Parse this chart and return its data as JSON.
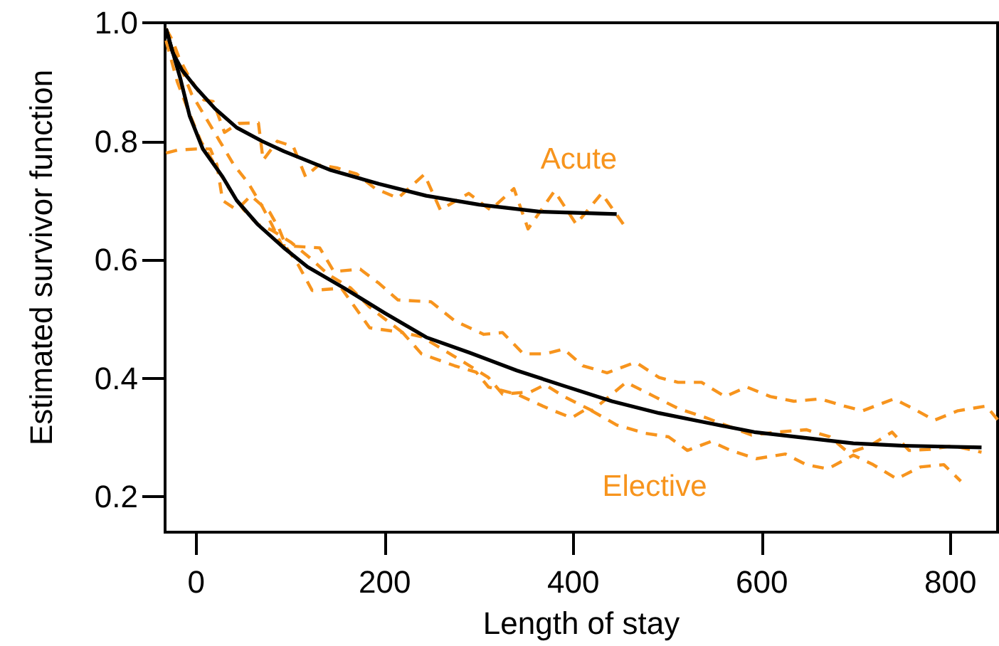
{
  "chart_data": {
    "type": "line",
    "xlabel": "Length of stay",
    "ylabel": "Estimated survivor function",
    "xlim": [
      -33,
      850
    ],
    "ylim": [
      0.14,
      1.0
    ],
    "xticks": [
      0,
      200,
      400,
      600,
      800
    ],
    "yticks": [
      0.2,
      0.4,
      0.6,
      0.8,
      {
        "value": 1,
        "label": "1.0"
      }
    ],
    "marker": "none",
    "series": [
      {
        "color": "#000000",
        "line_style": "solid",
        "x": [
          -32,
          -25,
          -15,
          0,
          20,
          43,
          70,
          93,
          143,
          194,
          244,
          300,
          365,
          446
        ],
        "values": [
          0.99,
          0.95,
          0.92,
          0.89,
          0.855,
          0.823,
          0.8,
          0.783,
          0.751,
          0.728,
          0.708,
          0.693,
          0.681,
          0.677
        ]
      },
      {
        "color": "#000000",
        "line_style": "solid",
        "x": [
          -32,
          -17,
          -7,
          7,
          28,
          43,
          65,
          93,
          118,
          157,
          200,
          244,
          290,
          340,
          390,
          441,
          491,
          541,
          592,
          647,
          697,
          748,
          833
        ],
        "values": [
          0.99,
          0.907,
          0.843,
          0.787,
          0.74,
          0.7,
          0.66,
          0.62,
          0.588,
          0.552,
          0.51,
          0.469,
          0.443,
          0.413,
          0.387,
          0.361,
          0.341,
          0.325,
          0.309,
          0.299,
          0.29,
          0.286,
          0.283
        ]
      },
      {
        "color": "#f7941d",
        "line_style": "dashed",
        "x": [
          -32,
          -25,
          -18,
          -8,
          0,
          8,
          18,
          30,
          45,
          66,
          71,
          86,
          103,
          116,
          130,
          149,
          170,
          190,
          214,
          242,
          259,
          289,
          312,
          337,
          352,
          380,
          403,
          430,
          453
        ],
        "values": [
          0.99,
          0.97,
          0.94,
          0.91,
          0.89,
          0.87,
          0.867,
          0.815,
          0.83,
          0.831,
          0.768,
          0.8,
          0.791,
          0.74,
          0.76,
          0.755,
          0.745,
          0.72,
          0.704,
          0.744,
          0.684,
          0.712,
          0.684,
          0.72,
          0.652,
          0.716,
          0.66,
          0.712,
          0.66
        ]
      },
      {
        "color": "#f7941d",
        "line_style": "dashed",
        "x": [
          -32,
          -25,
          -15,
          -5,
          10,
          25,
          40,
          55,
          70,
          80,
          91,
          131,
          146,
          174,
          194,
          214,
          249,
          274,
          305,
          325,
          347,
          370,
          390,
          410,
          436,
          466,
          491,
          511,
          536,
          561,
          584,
          609,
          634,
          662,
          687,
          707,
          740,
          760,
          783,
          808,
          838,
          850
        ],
        "values": [
          0.99,
          0.96,
          0.92,
          0.88,
          0.84,
          0.8,
          0.76,
          0.73,
          0.69,
          0.66,
          0.624,
          0.62,
          0.58,
          0.584,
          0.56,
          0.532,
          0.529,
          0.497,
          0.474,
          0.477,
          0.441,
          0.441,
          0.449,
          0.421,
          0.409,
          0.427,
          0.401,
          0.393,
          0.393,
          0.369,
          0.385,
          0.369,
          0.361,
          0.365,
          0.353,
          0.345,
          0.365,
          0.349,
          0.329,
          0.345,
          0.353,
          0.33
        ]
      },
      {
        "color": "#f7941d",
        "line_style": "dashed",
        "x": [
          -32,
          -20,
          -8,
          5,
          20,
          35,
          50,
          65,
          80,
          100,
          123,
          140,
          164,
          184,
          200,
          219,
          239,
          260,
          290,
          310,
          325,
          355,
          370,
          390,
          420,
          456,
          486,
          511,
          541,
          561,
          589,
          617,
          647,
          672,
          692,
          715,
          738,
          756,
          780,
          803,
          833
        ],
        "values": [
          0.97,
          0.9,
          0.85,
          0.8,
          0.76,
          0.72,
          0.685,
          0.66,
          0.65,
          0.63,
          0.6,
          0.575,
          0.552,
          0.52,
          0.5,
          0.477,
          0.47,
          0.45,
          0.421,
          0.401,
          0.373,
          0.377,
          0.389,
          0.369,
          0.345,
          0.393,
          0.369,
          0.349,
          0.333,
          0.321,
          0.304,
          0.309,
          0.313,
          0.301,
          0.274,
          0.286,
          0.309,
          0.278,
          0.28,
          0.286,
          0.275
        ]
      },
      {
        "color": "#f7941d",
        "line_style": "dashed",
        "x": [
          -32,
          -20,
          0,
          15,
          22,
          28,
          43,
          58,
          78,
          88,
          96,
          108,
          123,
          154,
          184,
          219,
          239,
          274,
          297,
          310,
          340,
          373,
          398,
          415,
          446,
          476,
          501,
          521,
          546,
          567,
          594,
          625,
          647,
          670,
          697,
          718,
          743,
          768,
          793,
          811
        ],
        "values": [
          0.78,
          0.785,
          0.787,
          0.787,
          0.76,
          0.7,
          0.684,
          0.708,
          0.68,
          0.652,
          0.62,
          0.592,
          0.548,
          0.552,
          0.485,
          0.477,
          0.441,
          0.421,
          0.41,
          0.385,
          0.373,
          0.349,
          0.333,
          0.349,
          0.321,
          0.307,
          0.301,
          0.278,
          0.293,
          0.278,
          0.264,
          0.272,
          0.254,
          0.247,
          0.27,
          0.254,
          0.23,
          0.25,
          0.254,
          0.226
        ]
      }
    ],
    "annotations": [
      "Acute",
      "Elective"
    ]
  }
}
